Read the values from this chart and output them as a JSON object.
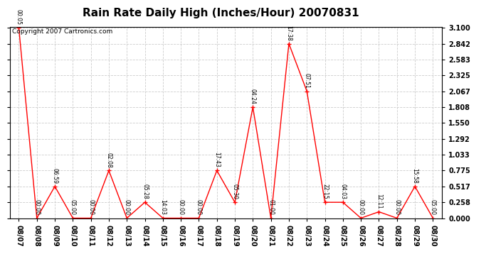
{
  "title": "Rain Rate Daily High (Inches/Hour) 20070831",
  "copyright": "Copyright 2007 Cartronics.com",
  "x_labels": [
    "08/07",
    "08/08",
    "08/09",
    "08/10",
    "08/11",
    "08/12",
    "08/13",
    "08/14",
    "08/15",
    "08/16",
    "08/17",
    "08/18",
    "08/19",
    "08/20",
    "08/21",
    "08/22",
    "08/23",
    "08/24",
    "08/25",
    "08/26",
    "08/27",
    "08/28",
    "08/29",
    "08/30"
  ],
  "y_values": [
    3.1,
    0.0,
    0.517,
    0.0,
    0.0,
    0.775,
    0.0,
    0.258,
    0.0,
    0.0,
    0.0,
    0.775,
    0.258,
    1.808,
    0.0,
    2.842,
    2.067,
    0.258,
    0.258,
    0.0,
    0.103,
    0.0,
    0.517,
    0.0
  ],
  "time_labels": [
    "00:05",
    "00:00",
    "06:59",
    "05:00",
    "00:00",
    "02:08",
    "00:00",
    "05:28",
    "14:03",
    "00:00",
    "00:00",
    "17:43",
    "05:30",
    "04:24",
    "01:00",
    "17:38",
    "07:51",
    "22:15",
    "04:03",
    "00:00",
    "12:11",
    "00:00",
    "15:58",
    "05:00"
  ],
  "yticks": [
    0.0,
    0.258,
    0.517,
    0.775,
    1.033,
    1.292,
    1.55,
    1.808,
    2.067,
    2.325,
    2.583,
    2.842,
    3.1
  ],
  "line_color": "#ff0000",
  "marker_color": "#ff0000",
  "background_color": "#ffffff",
  "grid_color": "#cccccc",
  "title_fontsize": 11,
  "tick_fontsize": 7,
  "annot_fontsize": 5.5,
  "copyright_fontsize": 6.5,
  "ylim": [
    0.0,
    3.1
  ]
}
